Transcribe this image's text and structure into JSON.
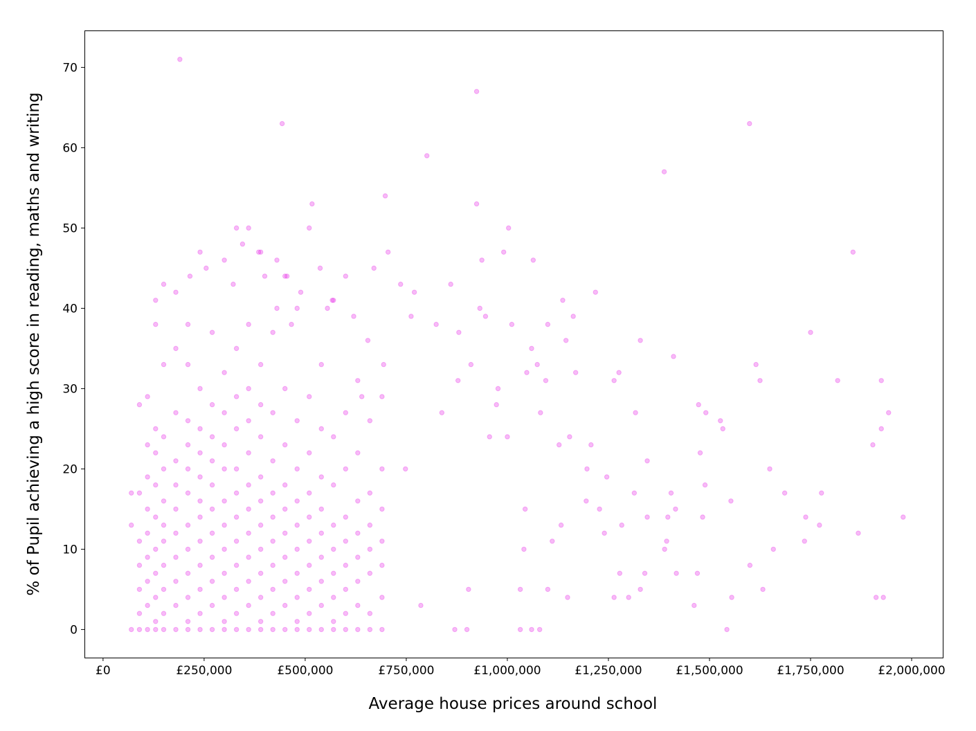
{
  "chart_data": {
    "type": "scatter",
    "x_label": "Average house prices around school",
    "y_label": "% of Pupil achieving a high score in reading, maths and writing",
    "color": "#e619e6",
    "opacity": 0.3,
    "xlim": [
      -46000,
      2077000
    ],
    "ylim": [
      -3.5,
      74.6
    ],
    "xticks": [
      {
        "value": 0,
        "label": "£0"
      },
      {
        "value": 250000,
        "label": "£250,000"
      },
      {
        "value": 500000,
        "label": "£500,000"
      },
      {
        "value": 750000,
        "label": "£750,000"
      },
      {
        "value": 1000000,
        "label": "£1,000,000"
      },
      {
        "value": 1250000,
        "label": "£1,250,000"
      },
      {
        "value": 1500000,
        "label": "£1,500,000"
      },
      {
        "value": 1750000,
        "label": "£1,750,000"
      },
      {
        "value": 2000000,
        "label": "£2,000,000"
      }
    ],
    "yticks": [
      0,
      10,
      20,
      30,
      40,
      50,
      60,
      70
    ],
    "x": [
      70000,
      70000,
      70000,
      90000,
      90000,
      90000,
      90000,
      90000,
      90000,
      90000,
      110000,
      110000,
      110000,
      110000,
      110000,
      110000,
      110000,
      110000,
      110000,
      130000,
      130000,
      130000,
      130000,
      130000,
      130000,
      130000,
      130000,
      130000,
      130000,
      150000,
      150000,
      150000,
      150000,
      150000,
      150000,
      150000,
      150000,
      150000,
      150000,
      150000,
      180000,
      180000,
      180000,
      180000,
      180000,
      180000,
      180000,
      180000,
      180000,
      180000,
      180000,
      210000,
      210000,
      210000,
      210000,
      210000,
      210000,
      210000,
      210000,
      210000,
      210000,
      210000,
      210000,
      240000,
      240000,
      240000,
      240000,
      240000,
      240000,
      240000,
      240000,
      240000,
      240000,
      240000,
      240000,
      270000,
      270000,
      270000,
      270000,
      270000,
      270000,
      270000,
      270000,
      270000,
      270000,
      270000,
      300000,
      300000,
      300000,
      300000,
      300000,
      300000,
      300000,
      300000,
      300000,
      300000,
      300000,
      300000,
      330000,
      330000,
      330000,
      330000,
      330000,
      330000,
      330000,
      330000,
      330000,
      330000,
      330000,
      330000,
      360000,
      360000,
      360000,
      360000,
      360000,
      360000,
      360000,
      360000,
      360000,
      360000,
      360000,
      360000,
      390000,
      390000,
      390000,
      390000,
      390000,
      390000,
      390000,
      390000,
      390000,
      390000,
      390000,
      390000,
      420000,
      420000,
      420000,
      420000,
      420000,
      420000,
      420000,
      420000,
      420000,
      420000,
      450000,
      450000,
      450000,
      450000,
      450000,
      450000,
      450000,
      450000,
      450000,
      450000,
      480000,
      480000,
      480000,
      480000,
      480000,
      480000,
      480000,
      480000,
      480000,
      480000,
      510000,
      510000,
      510000,
      510000,
      510000,
      510000,
      510000,
      510000,
      510000,
      510000,
      540000,
      540000,
      540000,
      540000,
      540000,
      540000,
      540000,
      540000,
      540000,
      570000,
      570000,
      570000,
      570000,
      570000,
      570000,
      570000,
      570000,
      570000,
      600000,
      600000,
      600000,
      600000,
      600000,
      600000,
      600000,
      600000,
      630000,
      630000,
      630000,
      630000,
      630000,
      630000,
      630000,
      630000,
      660000,
      660000,
      660000,
      660000,
      660000,
      660000,
      660000,
      690000,
      690000,
      690000,
      690000,
      690000,
      690000,
      690000,
      190000,
      924000,
      443000,
      1599000,
      801000,
      1388000,
      924000,
      517000,
      698000,
      1003000,
      1855000,
      1979000,
      1925000,
      1943000,
      1868000,
      1912000,
      1930000,
      1904000,
      1925000,
      1817000,
      1750000,
      1649000,
      1625000,
      1615000,
      1555000,
      1543000,
      1600000,
      1632000,
      1686000,
      1658000,
      1735000,
      1738000,
      1772000,
      1777000,
      1527000,
      1533000,
      1553000,
      1477000,
      1483000,
      1462000,
      1470000,
      1473000,
      1489000,
      1491000,
      1411000,
      1416000,
      1418000,
      1405000,
      1389000,
      1394000,
      1397000,
      1340000,
      1346000,
      1346000,
      1300000,
      1314000,
      1317000,
      1329000,
      1329000,
      1283000,
      1278000,
      1264000,
      1264000,
      1276000,
      1240000,
      1246000,
      1218000,
      1228000,
      1207000,
      1197000,
      1195000,
      1169000,
      1163000,
      1145000,
      1137000,
      1154000,
      1133000,
      1128000,
      1149000,
      1100000,
      1111000,
      1095000,
      1082000,
      1074000,
      1064000,
      1060000,
      1048000,
      1044000,
      1041000,
      1032000,
      1032000,
      1011000,
      1000000,
      991000,
      977000,
      973000,
      956000,
      946000,
      937000,
      932000,
      910000,
      904000,
      878000,
      880000,
      860000,
      824000,
      838000,
      770000,
      762000,
      786000,
      736000,
      748000,
      705000,
      694000,
      670000,
      655000,
      640000,
      620000,
      600000,
      567000,
      555000,
      537000,
      489000,
      455000,
      466000,
      430000,
      430000,
      400000,
      385000,
      345000,
      322000,
      255000,
      215000,
      130000,
      1100000,
      1080000,
      1060000,
      900000,
      870000
    ],
    "values": [
      0,
      17,
      13,
      0,
      2,
      5,
      8,
      11,
      17,
      28,
      0,
      3,
      6,
      9,
      12,
      15,
      19,
      23,
      29,
      0,
      1,
      4,
      7,
      10,
      14,
      18,
      22,
      25,
      41,
      0,
      2,
      5,
      8,
      11,
      13,
      16,
      20,
      24,
      33,
      43,
      0,
      3,
      6,
      9,
      12,
      15,
      18,
      21,
      27,
      35,
      42,
      0,
      1,
      4,
      7,
      10,
      13,
      17,
      20,
      23,
      26,
      33,
      38,
      0,
      2,
      5,
      8,
      11,
      14,
      16,
      19,
      22,
      25,
      30,
      47,
      0,
      3,
      6,
      9,
      12,
      15,
      18,
      21,
      24,
      28,
      37,
      0,
      1,
      4,
      7,
      10,
      13,
      16,
      20,
      23,
      27,
      32,
      46,
      0,
      2,
      5,
      8,
      11,
      14,
      17,
      20,
      25,
      29,
      35,
      50,
      0,
      3,
      6,
      9,
      12,
      15,
      18,
      22,
      26,
      30,
      38,
      50,
      0,
      1,
      4,
      7,
      10,
      13,
      16,
      19,
      24,
      28,
      33,
      47,
      0,
      2,
      5,
      8,
      11,
      14,
      17,
      21,
      27,
      37,
      0,
      3,
      6,
      9,
      12,
      15,
      18,
      23,
      30,
      44,
      0,
      1,
      4,
      7,
      10,
      13,
      16,
      20,
      26,
      40,
      0,
      2,
      5,
      8,
      11,
      14,
      17,
      22,
      29,
      50,
      0,
      3,
      6,
      9,
      12,
      15,
      19,
      25,
      33,
      0,
      1,
      4,
      7,
      10,
      13,
      18,
      24,
      41,
      0,
      2,
      5,
      8,
      11,
      14,
      20,
      27,
      0,
      3,
      6,
      9,
      12,
      16,
      22,
      31,
      0,
      2,
      7,
      10,
      13,
      17,
      26,
      0,
      4,
      8,
      11,
      15,
      20,
      29,
      71,
      67,
      63,
      63,
      59,
      57,
      53,
      53,
      54,
      50,
      47,
      14,
      31,
      27,
      12,
      4,
      4,
      23,
      25,
      31,
      37,
      20,
      31,
      33,
      4,
      0,
      8,
      5,
      17,
      10,
      11,
      14,
      13,
      17,
      26,
      25,
      16,
      22,
      14,
      3,
      7,
      28,
      18,
      27,
      34,
      15,
      7,
      17,
      10,
      11,
      14,
      7,
      14,
      21,
      4,
      17,
      27,
      36,
      5,
      13,
      7,
      4,
      31,
      32,
      12,
      19,
      42,
      15,
      23,
      20,
      16,
      32,
      39,
      36,
      41,
      24,
      13,
      23,
      4,
      38,
      11,
      31,
      27,
      33,
      46,
      35,
      32,
      15,
      10,
      5,
      0,
      38,
      24,
      47,
      30,
      28,
      24,
      39,
      46,
      40,
      33,
      5,
      31,
      37,
      43,
      38,
      27,
      42,
      39,
      3,
      43,
      20,
      47,
      33,
      45,
      36,
      29,
      39,
      44,
      41,
      40,
      45,
      42,
      44,
      38,
      46,
      40,
      44,
      47,
      48,
      43,
      45,
      44,
      38,
      5,
      0,
      0,
      0,
      0
    ]
  }
}
